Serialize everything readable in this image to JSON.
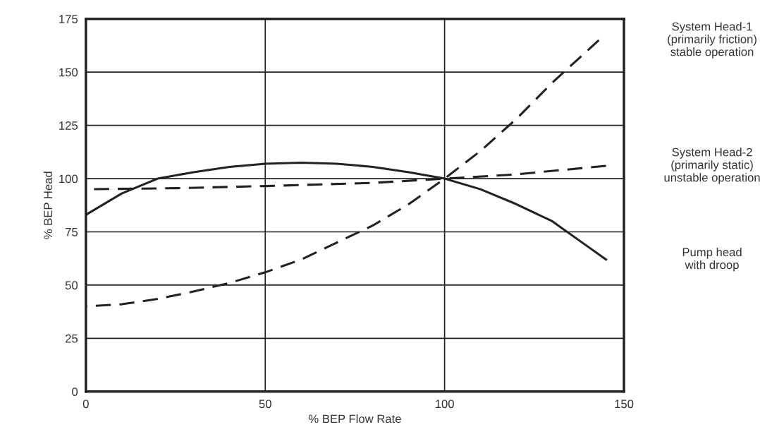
{
  "chart_data": {
    "type": "line",
    "xlabel": "% BEP Flow Rate",
    "ylabel": "% BEP Head",
    "xlim": [
      0,
      150
    ],
    "xticks": [
      0,
      50,
      100,
      150
    ],
    "ylim": [
      0,
      175
    ],
    "yticks": [
      0,
      25,
      50,
      75,
      100,
      125,
      150,
      175
    ],
    "grid": true,
    "legend": false,
    "marker": "none",
    "series": [
      {
        "name": "System Head-1\n(primarily friction)\nstable operation",
        "color": "#222222",
        "line_style": "dashed",
        "x": [
          0,
          10,
          20,
          30,
          40,
          50,
          60,
          70,
          80,
          90,
          100,
          110,
          120,
          130,
          143
        ],
        "values": [
          40,
          41,
          43.5,
          47,
          51,
          56,
          62,
          70,
          78,
          88,
          100,
          113,
          128,
          145,
          165
        ]
      },
      {
        "name": "System Head-2\n(primarily static)\nunstable operation",
        "color": "#222222",
        "line_style": "dashed",
        "x": [
          0,
          25,
          50,
          80,
          100,
          120,
          145
        ],
        "values": [
          95,
          95.5,
          96.5,
          98,
          100,
          102,
          106
        ]
      },
      {
        "name": "Pump head\nwith droop",
        "color": "#222222",
        "line_style": "solid",
        "x": [
          0,
          10,
          20,
          30,
          40,
          50,
          60,
          70,
          80,
          90,
          100,
          110,
          120,
          130,
          140,
          145
        ],
        "values": [
          83,
          93,
          100,
          103,
          105.5,
          107,
          107.5,
          107,
          105.5,
          103,
          100,
          95,
          88,
          80,
          68,
          62
        ]
      }
    ]
  }
}
